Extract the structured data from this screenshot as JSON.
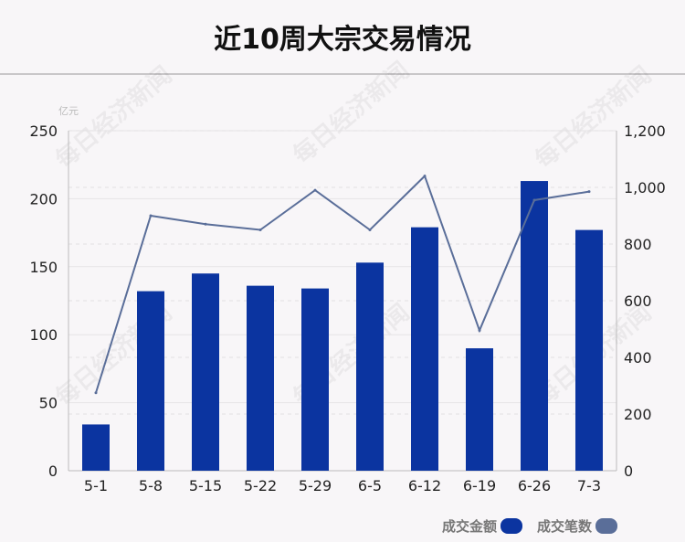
{
  "title": "近10周大宗交易情况",
  "colors": {
    "bar": "#0b34a0",
    "line": "#5a6e99",
    "grid": "#d8d6d8",
    "axis": "#bbbbbb"
  },
  "chart_data": {
    "type": "bar",
    "categories": [
      "5-1",
      "5-8",
      "5-15",
      "5-22",
      "5-29",
      "6-5",
      "6-12",
      "6-19",
      "6-26",
      "7-3"
    ],
    "series": [
      {
        "name": "成交金额",
        "type": "bar",
        "axis": "left",
        "values": [
          34,
          132,
          145,
          136,
          134,
          153,
          179,
          90,
          213,
          177
        ]
      },
      {
        "name": "成交笔数",
        "type": "line",
        "axis": "right",
        "values": [
          275,
          900,
          870,
          850,
          990,
          850,
          1040,
          495,
          955,
          985
        ]
      }
    ],
    "y_left": {
      "unit": "亿元",
      "lim": [
        0,
        250
      ],
      "ticks": [
        0,
        50,
        100,
        150,
        200,
        250
      ]
    },
    "y_right": {
      "lim": [
        0,
        1200
      ],
      "ticks": [
        0,
        200,
        400,
        600,
        800,
        1000,
        1200
      ]
    },
    "grid": true,
    "legend": "bottom-right"
  },
  "watermark": "每日经济新闻"
}
